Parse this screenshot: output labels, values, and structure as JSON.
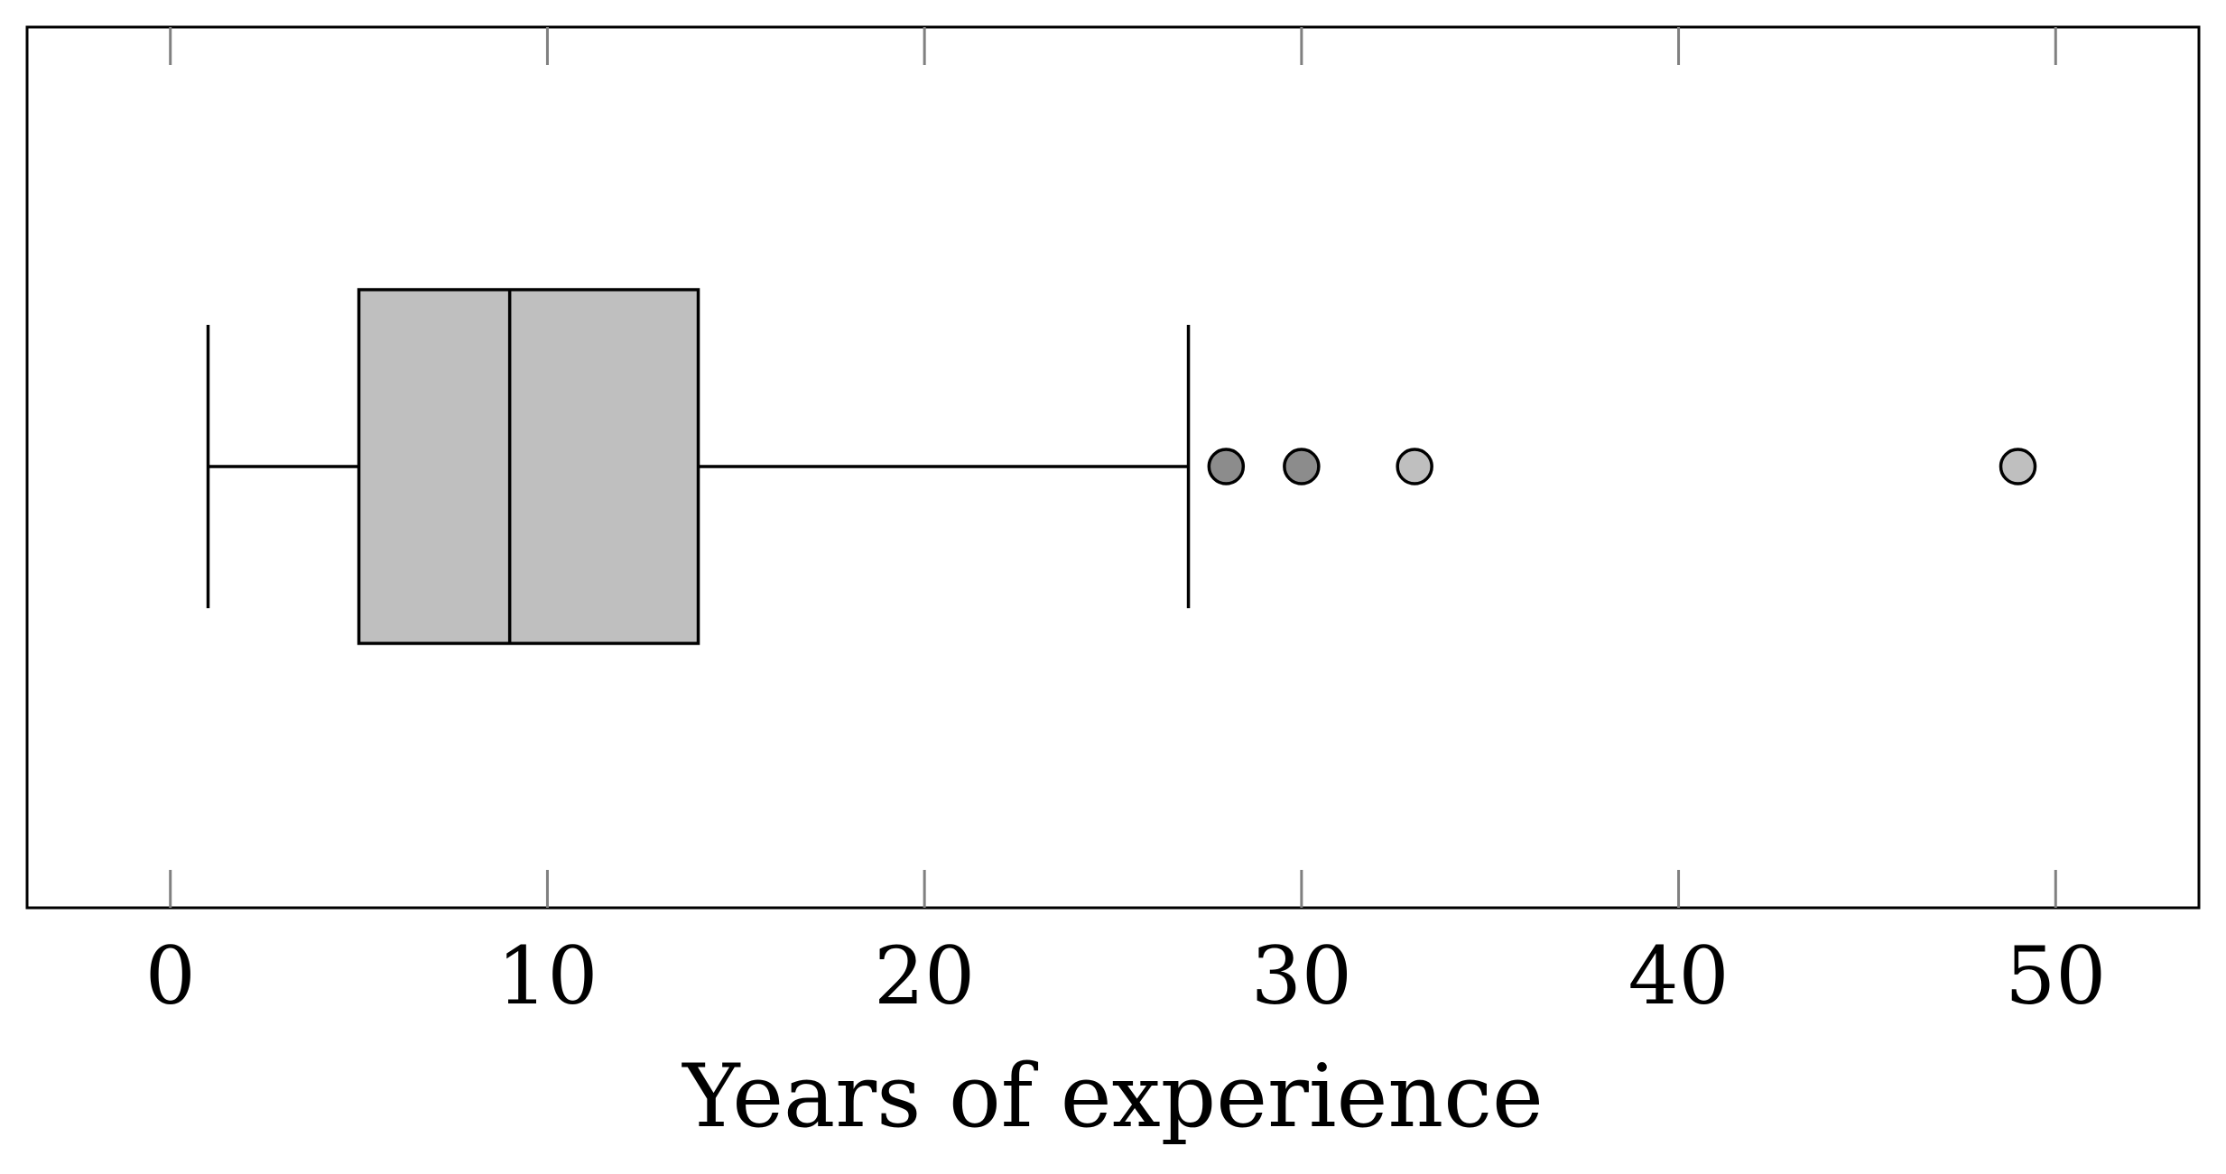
{
  "chart_data": {
    "type": "boxplot",
    "title": "",
    "xlabel": "Years of experience",
    "ylabel": "",
    "xlim": [
      -3.8,
      53.8
    ],
    "xticks": [
      0,
      10,
      20,
      30,
      40,
      50
    ],
    "xtick_labels": [
      "0",
      "10",
      "20",
      "30",
      "40",
      "50"
    ],
    "orientation": "horizontal",
    "grid": false,
    "legend": "none",
    "box": {
      "whisker_low": 1,
      "q1": 5,
      "median": 9,
      "q3": 14,
      "whisker_high": 27,
      "outliers": [
        {
          "value": 28,
          "color": "#8c8c8c"
        },
        {
          "value": 30,
          "color": "#8c8c8c"
        },
        {
          "value": 33,
          "color": "#bfbfbf"
        },
        {
          "value": 49,
          "color": "#bfbfbf"
        }
      ],
      "fill_color": "#bfbfbf",
      "line_color": "#000000"
    },
    "tick_color": "#808080",
    "frame_color": "#000000"
  }
}
